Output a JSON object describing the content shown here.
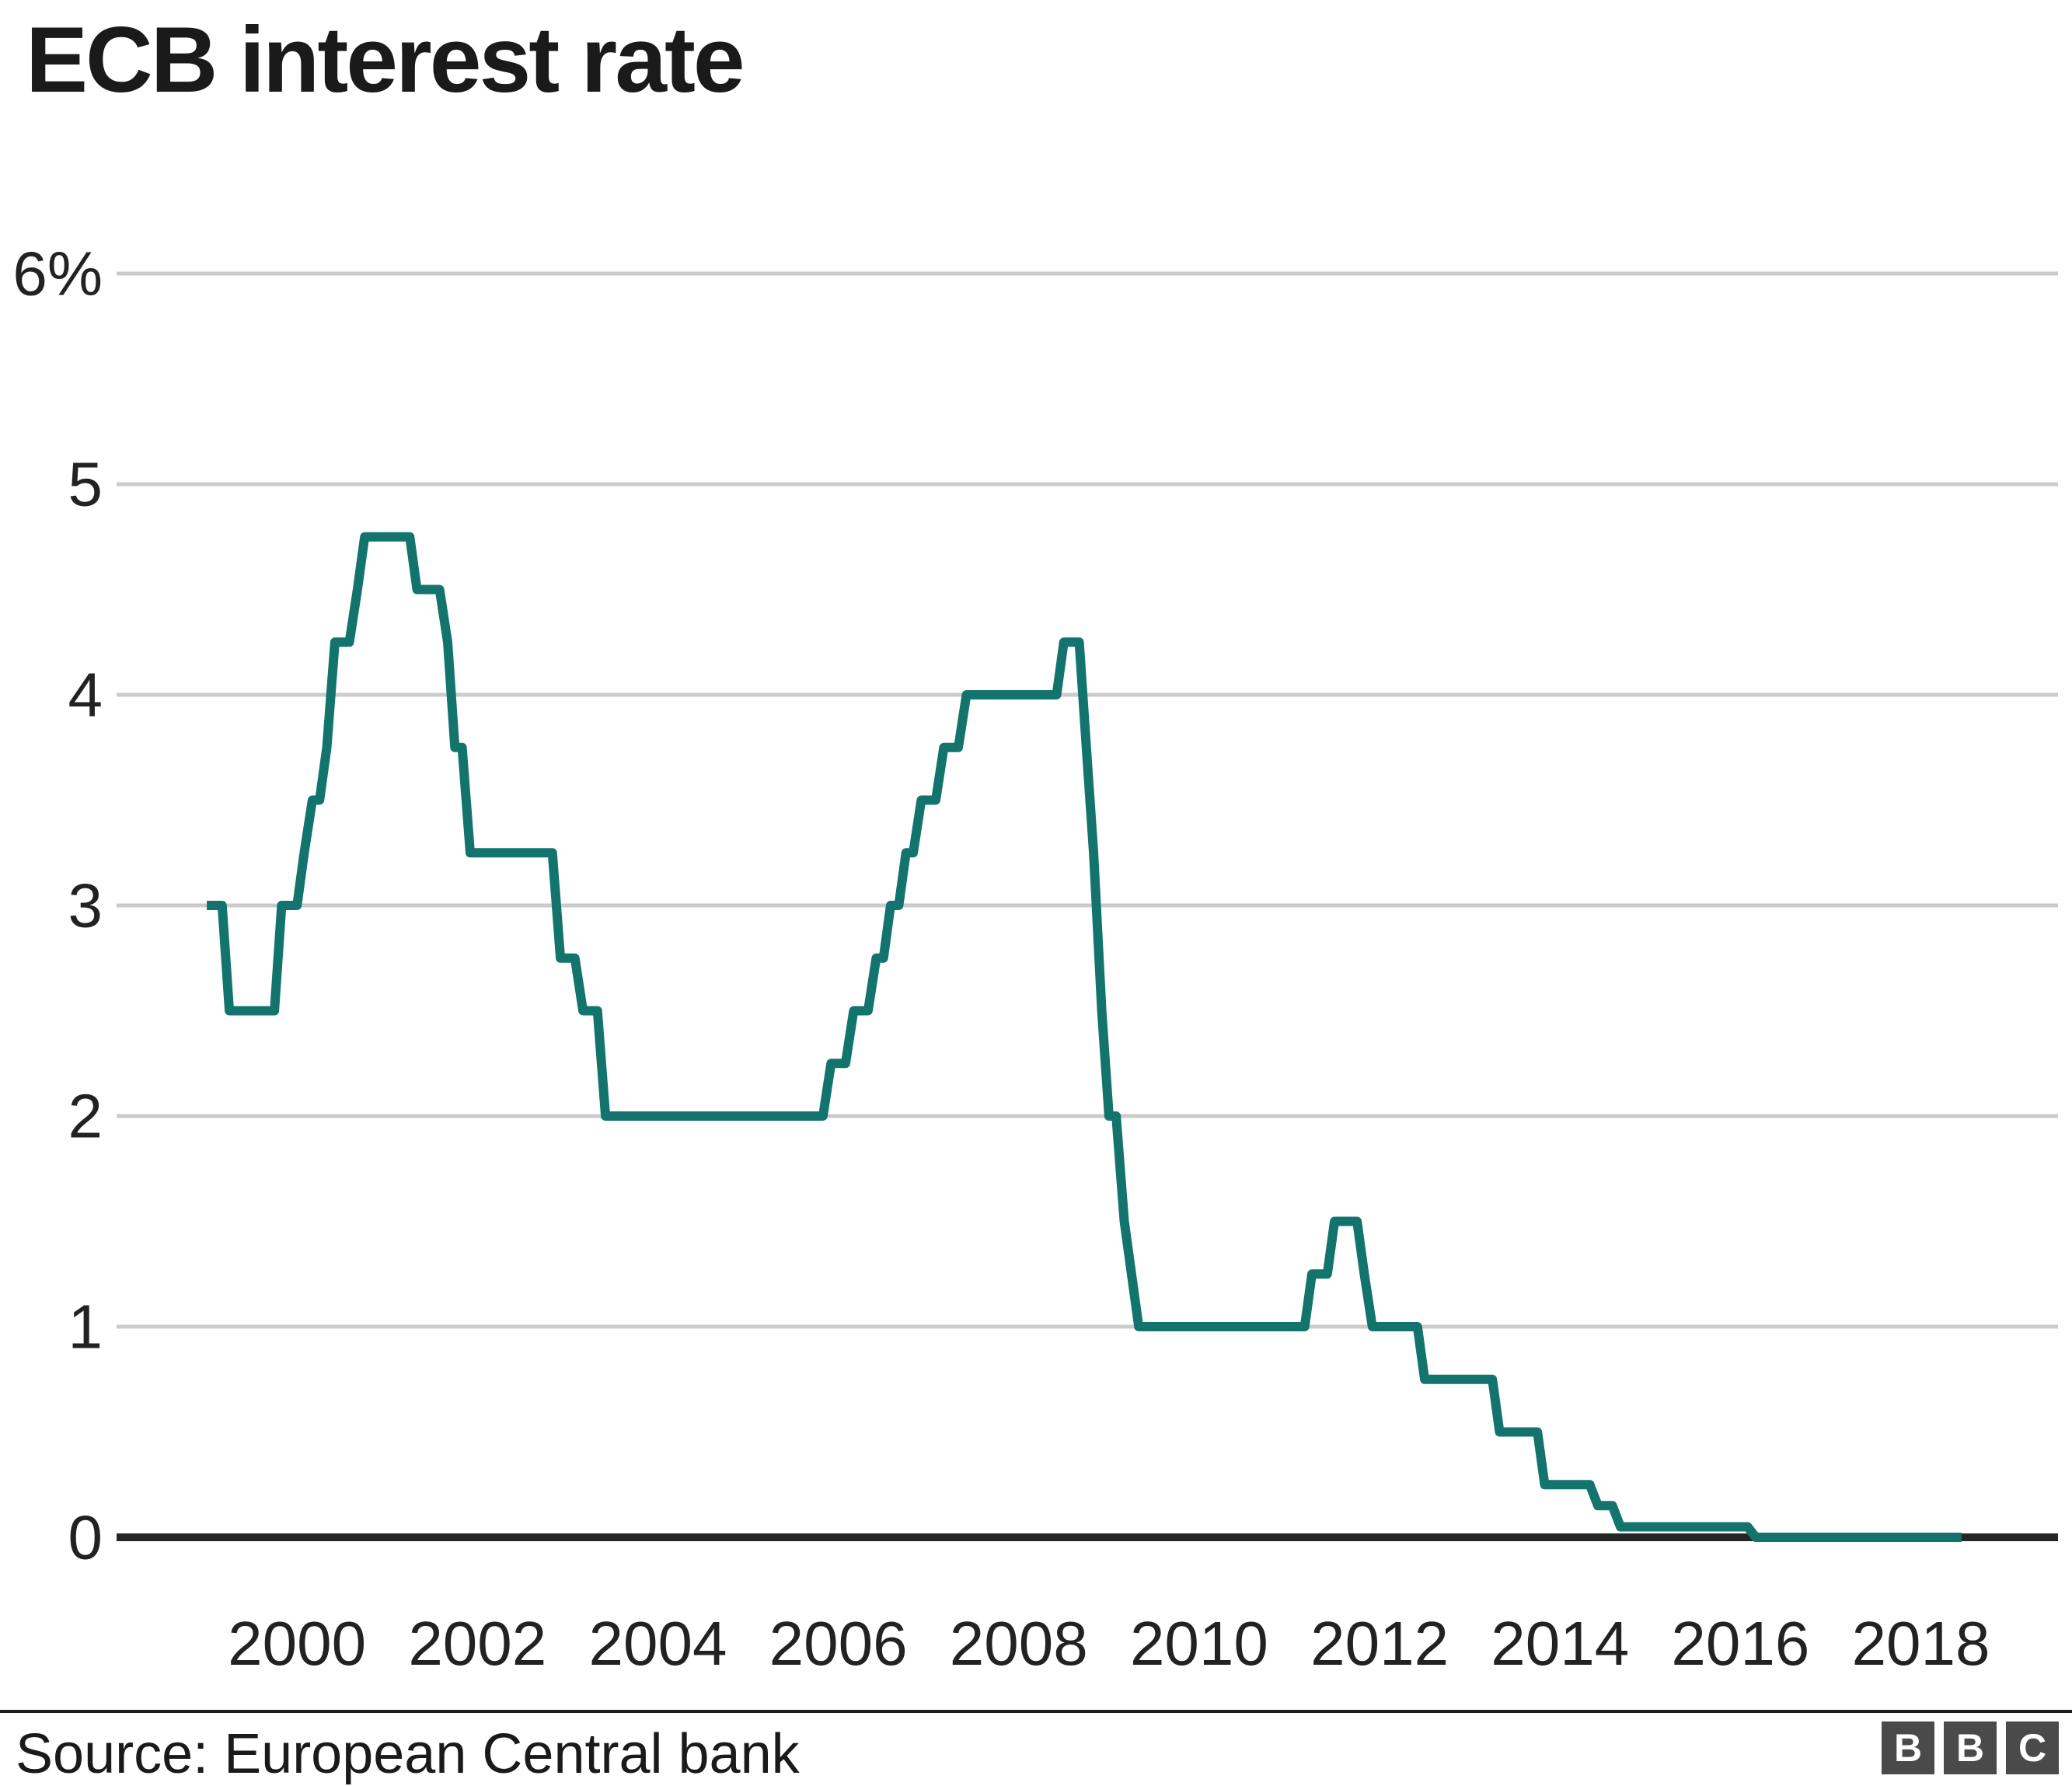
{
  "header": {
    "title": "ECB interest rate"
  },
  "footer": {
    "source": "Source: European Central bank",
    "logo_letters": [
      "B",
      "B",
      "C"
    ]
  },
  "colors": {
    "line": "#13736D",
    "grid": "#cbcbcb",
    "axis": "#262626",
    "text": "#222222",
    "title_text": "#1a1a1a",
    "divider": "#1f1f1f",
    "logo_bg": "#4a4a4a",
    "logo_text": "#ffffff"
  },
  "chart_data": {
    "type": "line",
    "title": "ECB interest rate",
    "unit": "%",
    "grid": true,
    "x_axis": {
      "min": 1998,
      "max": 2019.52,
      "tick_years": [
        2000,
        2002,
        2004,
        2006,
        2008,
        2010,
        2012,
        2014,
        2016,
        2018
      ]
    },
    "y_axis": {
      "min": 0,
      "max": 6,
      "ticks": [
        {
          "value": 0,
          "label": "0"
        },
        {
          "value": 1,
          "label": "1"
        },
        {
          "value": 2,
          "label": "2"
        },
        {
          "value": 3,
          "label": "3"
        },
        {
          "value": 4,
          "label": "4"
        },
        {
          "value": 5,
          "label": "5"
        },
        {
          "value": 6,
          "label": "6%"
        }
      ]
    },
    "series": [
      {
        "points": [
          [
            1999.0,
            3.0
          ],
          [
            1999.17,
            3.0
          ],
          [
            1999.25,
            2.5
          ],
          [
            1999.75,
            2.5
          ],
          [
            1999.83,
            3.0
          ],
          [
            2000.0,
            3.0
          ],
          [
            2000.08,
            3.25
          ],
          [
            2000.17,
            3.5
          ],
          [
            2000.25,
            3.5
          ],
          [
            2000.33,
            3.75
          ],
          [
            2000.42,
            4.25
          ],
          [
            2000.58,
            4.25
          ],
          [
            2000.67,
            4.5
          ],
          [
            2000.75,
            4.75
          ],
          [
            2001.25,
            4.75
          ],
          [
            2001.33,
            4.5
          ],
          [
            2001.58,
            4.5
          ],
          [
            2001.67,
            4.25
          ],
          [
            2001.75,
            3.75
          ],
          [
            2001.83,
            3.75
          ],
          [
            2001.92,
            3.25
          ],
          [
            2002.83,
            3.25
          ],
          [
            2002.92,
            2.75
          ],
          [
            2003.08,
            2.75
          ],
          [
            2003.17,
            2.5
          ],
          [
            2003.33,
            2.5
          ],
          [
            2003.42,
            2.0
          ],
          [
            2005.83,
            2.0
          ],
          [
            2005.92,
            2.25
          ],
          [
            2006.08,
            2.25
          ],
          [
            2006.17,
            2.5
          ],
          [
            2006.33,
            2.5
          ],
          [
            2006.42,
            2.75
          ],
          [
            2006.5,
            2.75
          ],
          [
            2006.58,
            3.0
          ],
          [
            2006.67,
            3.0
          ],
          [
            2006.75,
            3.25
          ],
          [
            2006.83,
            3.25
          ],
          [
            2006.92,
            3.5
          ],
          [
            2007.08,
            3.5
          ],
          [
            2007.17,
            3.75
          ],
          [
            2007.33,
            3.75
          ],
          [
            2007.42,
            4.0
          ],
          [
            2008.42,
            4.0
          ],
          [
            2008.5,
            4.25
          ],
          [
            2008.67,
            4.25
          ],
          [
            2008.75,
            3.75
          ],
          [
            2008.83,
            3.25
          ],
          [
            2008.92,
            2.5
          ],
          [
            2009.0,
            2.0
          ],
          [
            2009.08,
            2.0
          ],
          [
            2009.17,
            1.5
          ],
          [
            2009.25,
            1.25
          ],
          [
            2009.33,
            1.0
          ],
          [
            2011.17,
            1.0
          ],
          [
            2011.25,
            1.25
          ],
          [
            2011.42,
            1.25
          ],
          [
            2011.5,
            1.5
          ],
          [
            2011.75,
            1.5
          ],
          [
            2011.83,
            1.25
          ],
          [
            2011.92,
            1.0
          ],
          [
            2012.42,
            1.0
          ],
          [
            2012.5,
            0.75
          ],
          [
            2013.25,
            0.75
          ],
          [
            2013.33,
            0.5
          ],
          [
            2013.75,
            0.5
          ],
          [
            2013.83,
            0.25
          ],
          [
            2014.33,
            0.25
          ],
          [
            2014.42,
            0.15
          ],
          [
            2014.58,
            0.15
          ],
          [
            2014.67,
            0.05
          ],
          [
            2016.08,
            0.05
          ],
          [
            2016.17,
            0.0
          ],
          [
            2018.45,
            0.0
          ]
        ]
      }
    ],
    "layout_hints": {
      "plot_left": 150,
      "plot_right": 2648,
      "plot_top": 352,
      "plot_bottom": 1978,
      "grid_stroke": 5,
      "axis_stroke": 10,
      "line_stroke": 12,
      "y_label_right_x": 132,
      "x_label_baseline_y": 2142,
      "legend": "none"
    }
  }
}
